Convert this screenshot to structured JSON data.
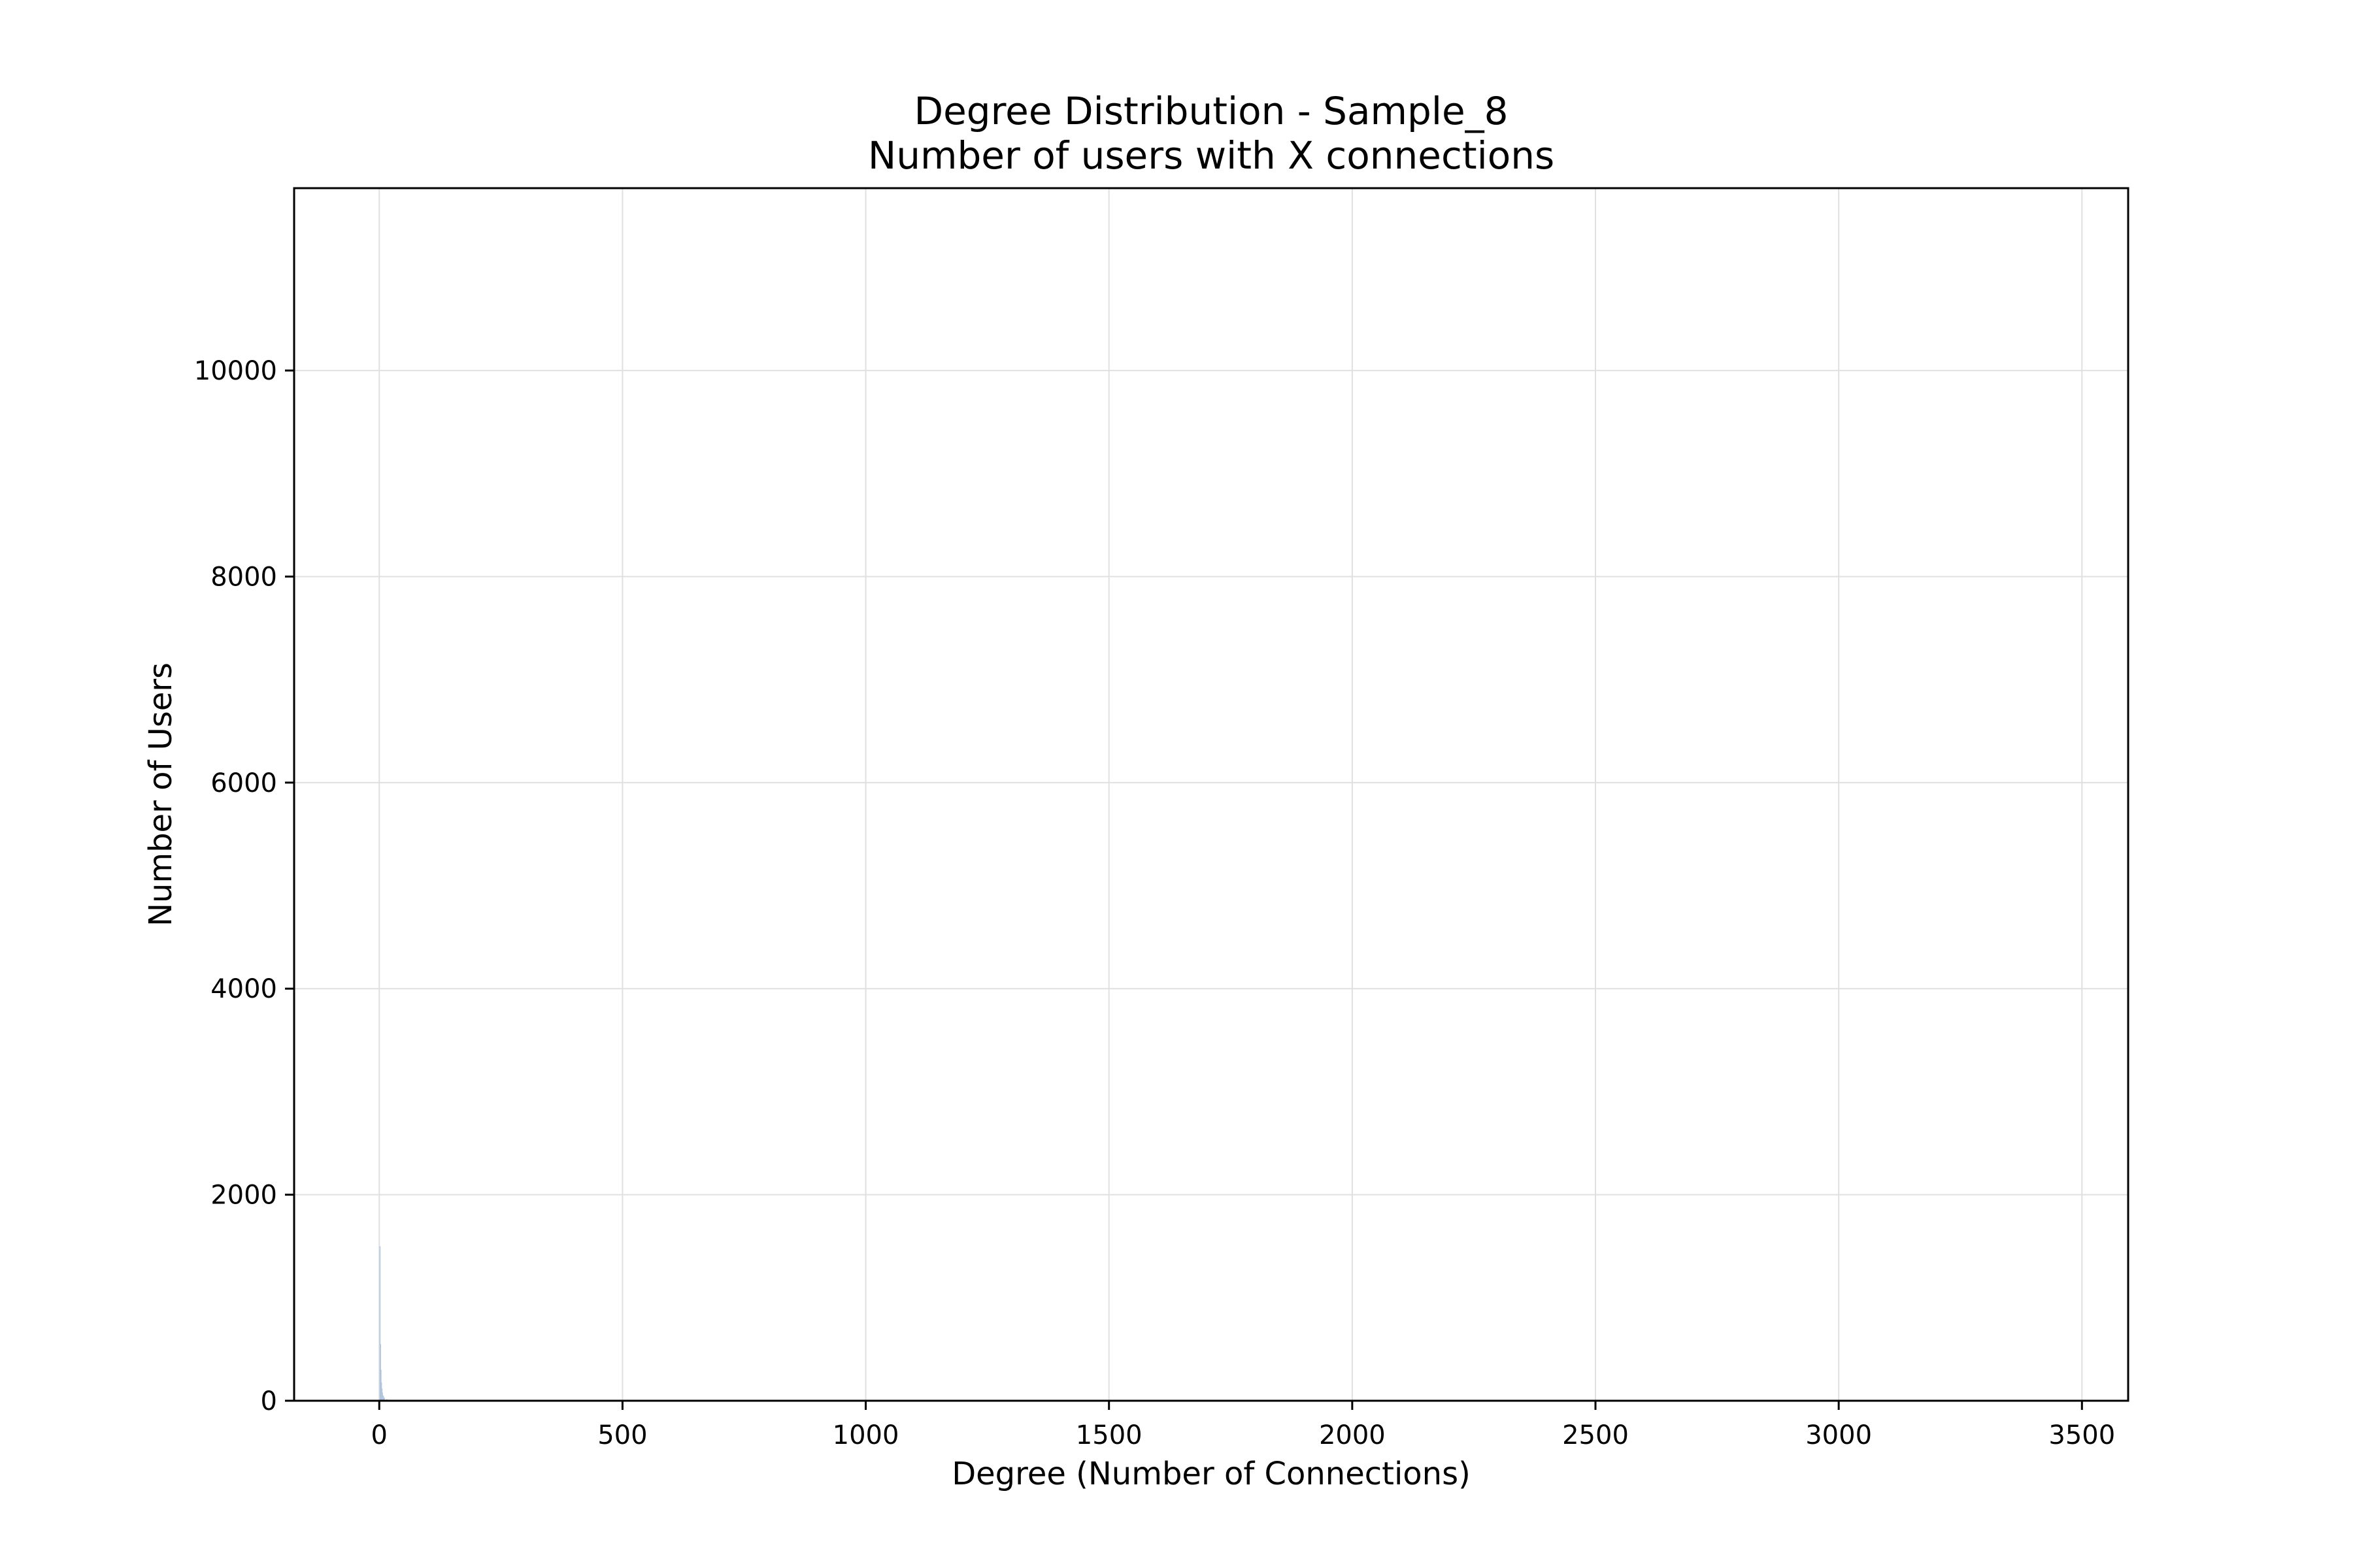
{
  "chart_data": {
    "type": "bar",
    "title": "Degree Distribution - Sample_8",
    "subtitle": "Number of users with X connections",
    "xlabel": "Degree (Number of Connections)",
    "ylabel": "Number of Users",
    "xlim": [
      -175,
      3595
    ],
    "ylim": [
      0,
      11770
    ],
    "xticks": [
      0,
      500,
      1000,
      1500,
      2000,
      2500,
      3000,
      3500
    ],
    "yticks": [
      0,
      2000,
      4000,
      6000,
      8000,
      10000
    ],
    "grid": true,
    "legend": "none",
    "bar_color": "#b0c4de",
    "grid_color": "#e0e0e0",
    "bin_width": 1,
    "x": [
      1,
      2,
      3,
      4,
      5,
      6,
      8,
      10,
      15,
      20
    ],
    "values": [
      1500,
      550,
      300,
      180,
      120,
      80,
      50,
      30,
      15,
      8
    ]
  }
}
